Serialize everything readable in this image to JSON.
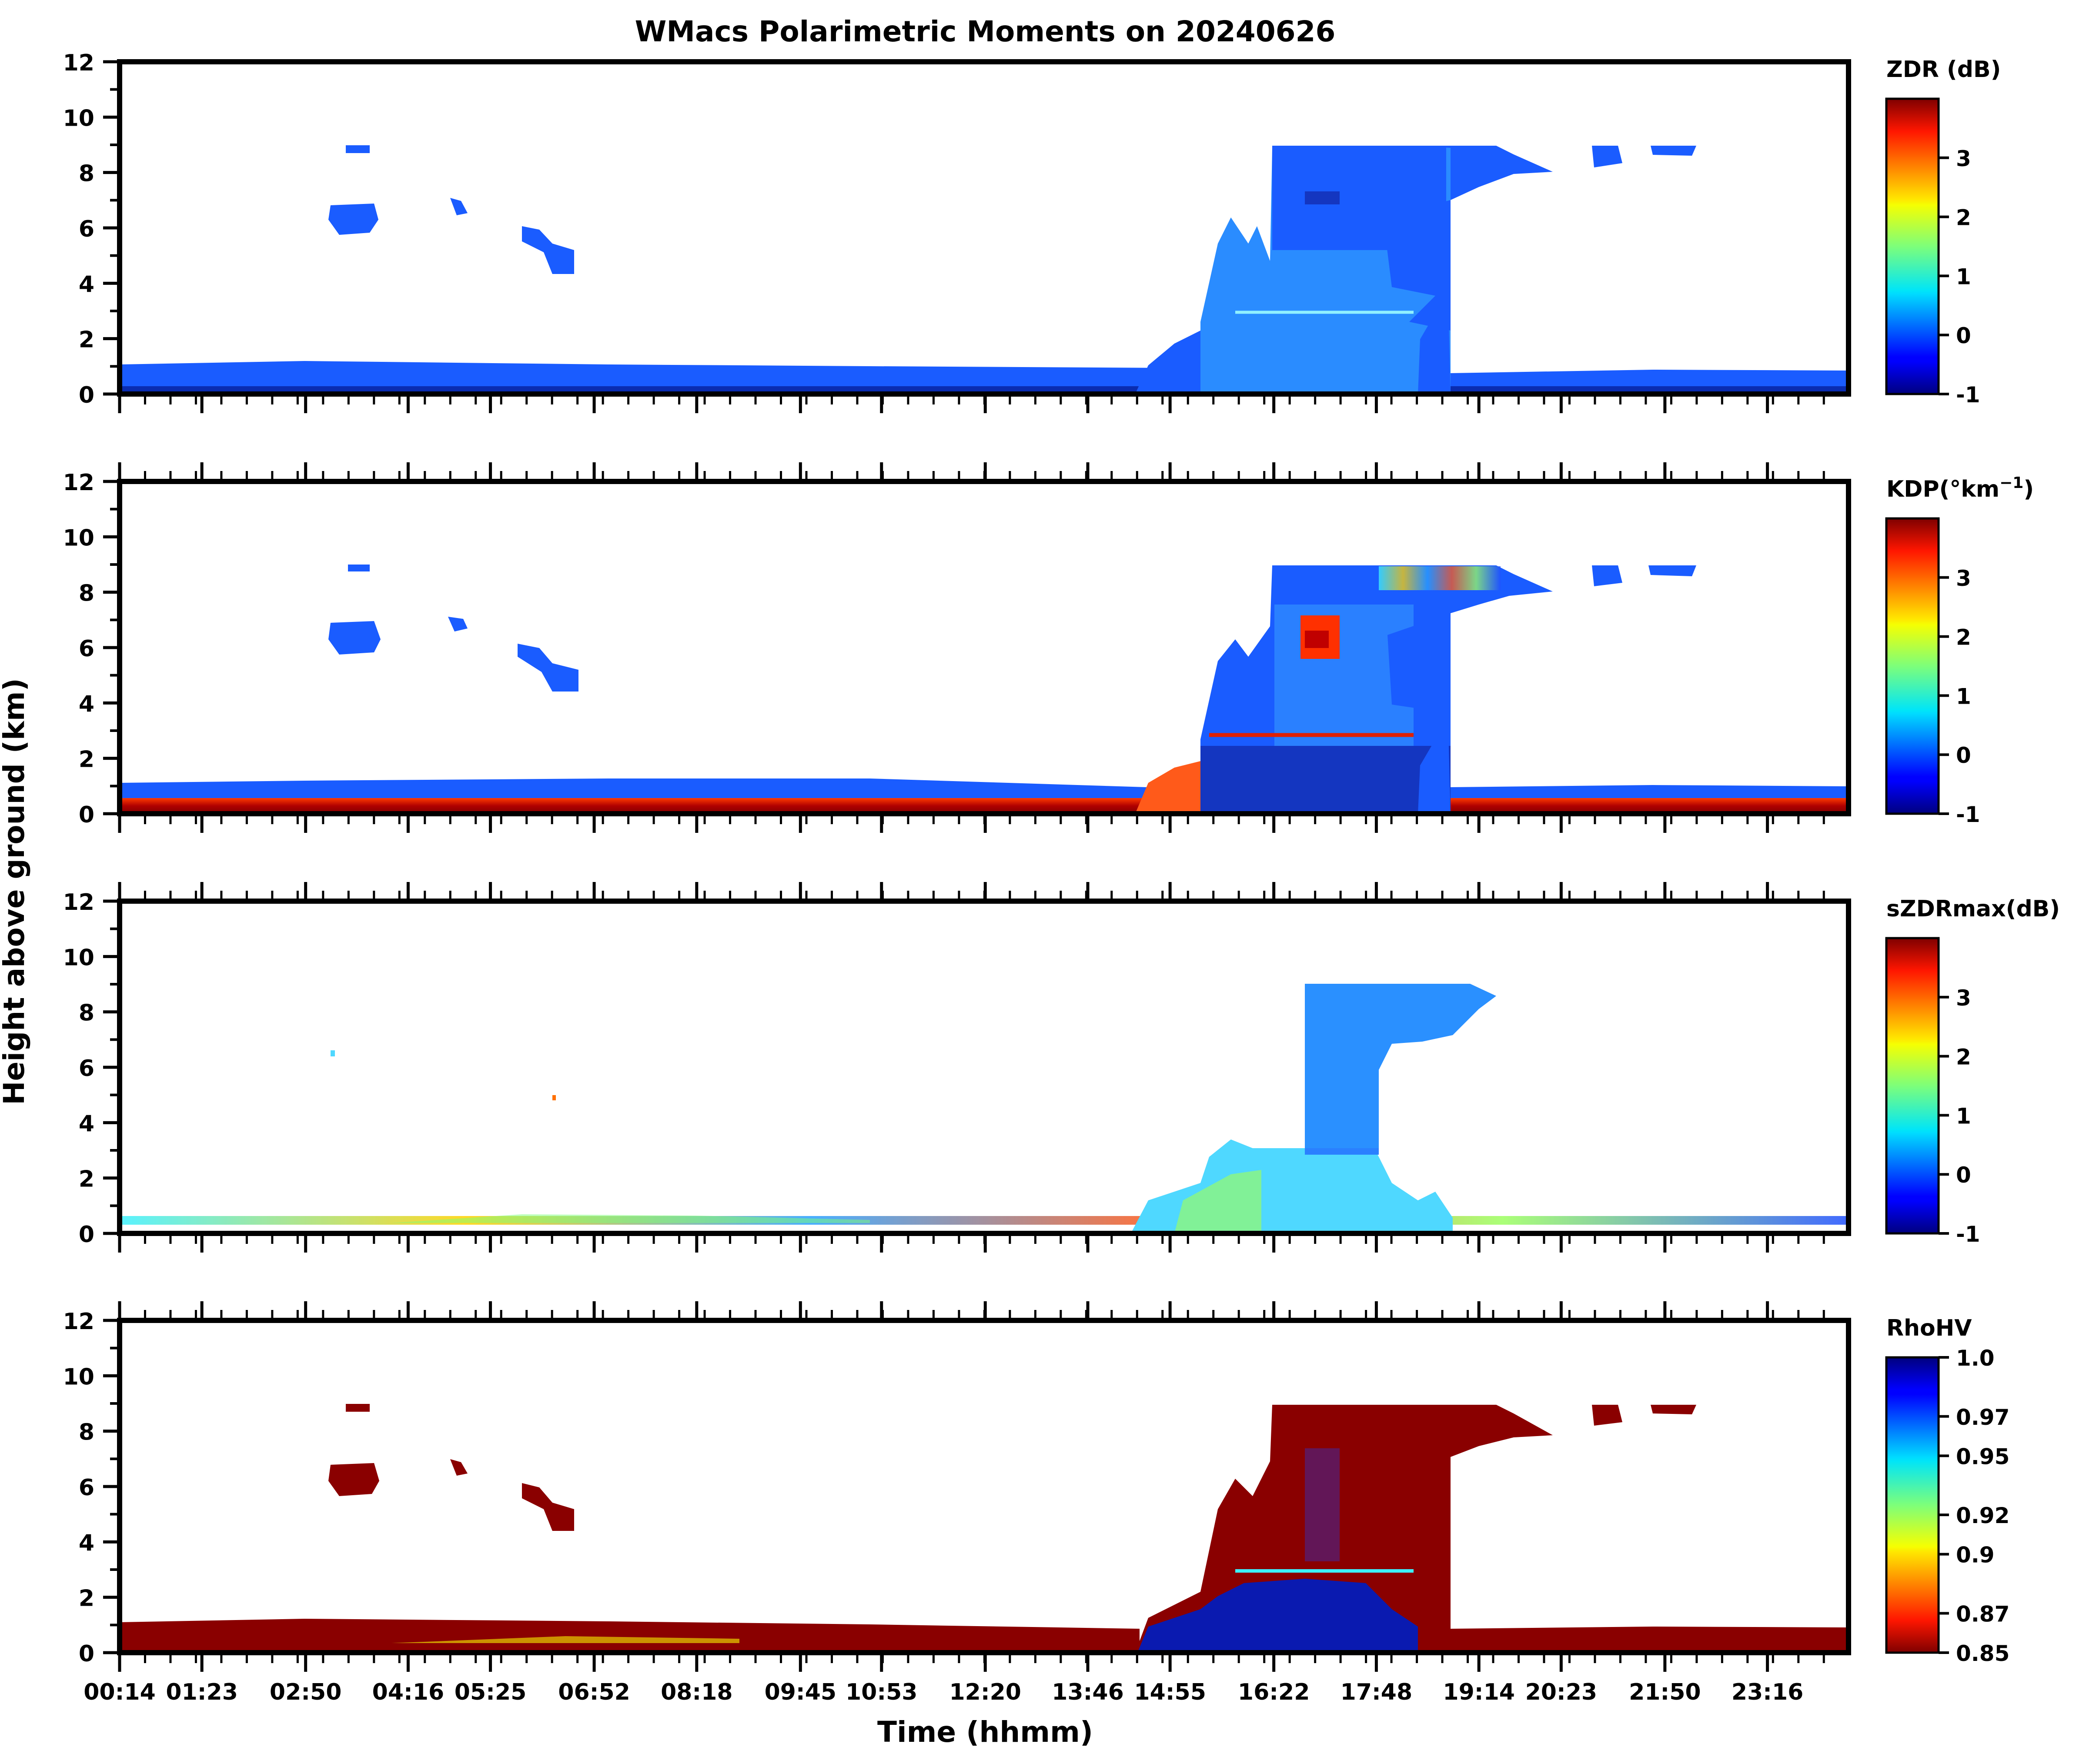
{
  "figure": {
    "title": "WMacs Polarimetric Moments on 20240626",
    "ylabel": "Height above ground (km)",
    "xlabel": "Time (hhmm)"
  },
  "chart_data": {
    "type": "heatmap",
    "x_ticks": [
      "00:14",
      "01:23",
      "02:50",
      "04:16",
      "05:25",
      "06:52",
      "08:18",
      "09:45",
      "10:53",
      "12:20",
      "13:46",
      "14:55",
      "16:22",
      "17:48",
      "19:14",
      "20:23",
      "21:50",
      "23:16"
    ],
    "x_range_hours": [
      0.2333,
      24.4
    ],
    "ylim": [
      0,
      12
    ],
    "y_ticks": [
      "0",
      "2",
      "4",
      "6",
      "8",
      "10",
      "12"
    ],
    "panels": [
      {
        "variable": "ZDR",
        "colorbar_label": "ZDR (dB)",
        "colormap": "jet",
        "clim": [
          -1,
          4
        ],
        "colorbar_ticks": [
          "3",
          "2",
          "1",
          "0",
          "-1"
        ],
        "colorbar_tick_values": [
          3,
          2,
          1,
          0,
          -1
        ]
      },
      {
        "variable": "KDP",
        "colorbar_label": "KDP(°km",
        "colorbar_label_sup": "−1",
        "colorbar_label_end": ")",
        "colormap": "jet",
        "clim": [
          -1,
          4
        ],
        "colorbar_ticks": [
          "3",
          "2",
          "1",
          "0",
          "-1"
        ],
        "colorbar_tick_values": [
          3,
          2,
          1,
          0,
          -1
        ]
      },
      {
        "variable": "sZDRmax",
        "colorbar_label": "sZDRmax(dB)",
        "colormap": "jet",
        "clim": [
          -1,
          4
        ],
        "colorbar_ticks": [
          "3",
          "2",
          "1",
          "0",
          "-1"
        ],
        "colorbar_tick_values": [
          3,
          2,
          1,
          0,
          -1
        ]
      },
      {
        "variable": "RhoHV",
        "colorbar_label": "RhoHV",
        "colormap": "jet_r",
        "clim": [
          0.85,
          1.0
        ],
        "colorbar_ticks": [
          "1.0",
          "0.97",
          "0.95",
          "0.92",
          "0.9",
          "0.87",
          "0.85"
        ],
        "colorbar_tick_values": [
          1.0,
          0.97,
          0.95,
          0.92,
          0.9,
          0.87,
          0.85
        ]
      }
    ],
    "features": [
      {
        "name": "boundary layer echo",
        "t_start": 0.23,
        "t_end": 24.4,
        "z_top_km": 1.0
      },
      {
        "name": "mid-level cloud patches",
        "t_start": 3.1,
        "t_end": 6.2,
        "z_bottom_km": 4.5,
        "z_top_km": 9.0
      },
      {
        "name": "convective storm",
        "t_start": 13.9,
        "t_end": 18.8,
        "z_top_km": 9.0
      },
      {
        "name": "melting layer",
        "t_start": 15.3,
        "t_end": 18.2,
        "z_km": 3.0
      },
      {
        "name": "upper cloud",
        "t_start": 18.8,
        "t_end": 21.5,
        "z_bottom_km": 8.0,
        "z_top_km": 9.0
      }
    ]
  }
}
